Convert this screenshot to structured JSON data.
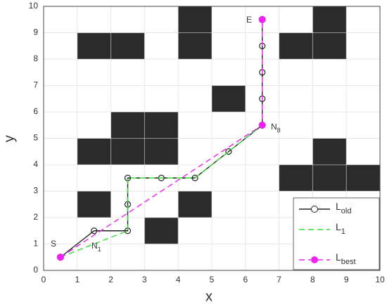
{
  "chart_data": {
    "type": "line",
    "xlabel": "x",
    "ylabel": "y",
    "xlim": [
      0,
      10
    ],
    "ylim": [
      0,
      10
    ],
    "xticks": [
      0,
      1,
      2,
      3,
      4,
      5,
      6,
      7,
      8,
      9,
      10
    ],
    "yticks": [
      0,
      1,
      2,
      3,
      4,
      5,
      6,
      7,
      8,
      9,
      10
    ],
    "grid": true,
    "legend": "lower right",
    "obstacle_color": "#2b2b2b",
    "obstacles": [
      [
        1,
        8
      ],
      [
        2,
        8
      ],
      [
        4,
        8
      ],
      [
        4,
        9
      ],
      [
        7,
        8
      ],
      [
        8,
        8
      ],
      [
        8,
        9
      ],
      [
        5,
        6
      ],
      [
        2,
        5
      ],
      [
        3,
        5
      ],
      [
        1,
        4
      ],
      [
        2,
        4
      ],
      [
        3,
        4
      ],
      [
        8,
        4
      ],
      [
        7,
        3
      ],
      [
        8,
        3
      ],
      [
        9,
        3
      ],
      [
        1,
        2
      ],
      [
        4,
        2
      ],
      [
        3,
        1
      ]
    ],
    "series": [
      {
        "name": "L",
        "subscript": "old",
        "color": "#222222",
        "style": "solid",
        "marker": "open-circle",
        "x": [
          0.5,
          1.5,
          2.5,
          2.5,
          2.5,
          3.5,
          4.5,
          5.5,
          6.5,
          6.5,
          6.5,
          6.5,
          6.5
        ],
        "values": [
          0.5,
          1.5,
          1.5,
          2.5,
          3.5,
          3.5,
          3.5,
          4.5,
          5.5,
          6.5,
          7.5,
          8.5,
          9.5
        ]
      },
      {
        "name": "L",
        "subscript": "1",
        "color": "#33dd33",
        "style": "dashed",
        "marker": "none",
        "x": [
          0.5,
          2.5,
          2.5,
          4.5,
          6.5,
          6.5
        ],
        "values": [
          0.5,
          1.5,
          3.5,
          3.5,
          5.5,
          9.5
        ]
      },
      {
        "name": "L",
        "subscript": "best",
        "color": "#ee22ee",
        "style": "dashed",
        "marker": "filled-circle",
        "x": [
          0.5,
          6.5,
          6.5
        ],
        "values": [
          0.5,
          5.5,
          9.5
        ]
      }
    ],
    "annotations": [
      {
        "text": "S"
      },
      {
        "text": "N",
        "subscript": "1"
      },
      {
        "text": "N",
        "subscript": "8"
      },
      {
        "text": "E"
      }
    ]
  }
}
